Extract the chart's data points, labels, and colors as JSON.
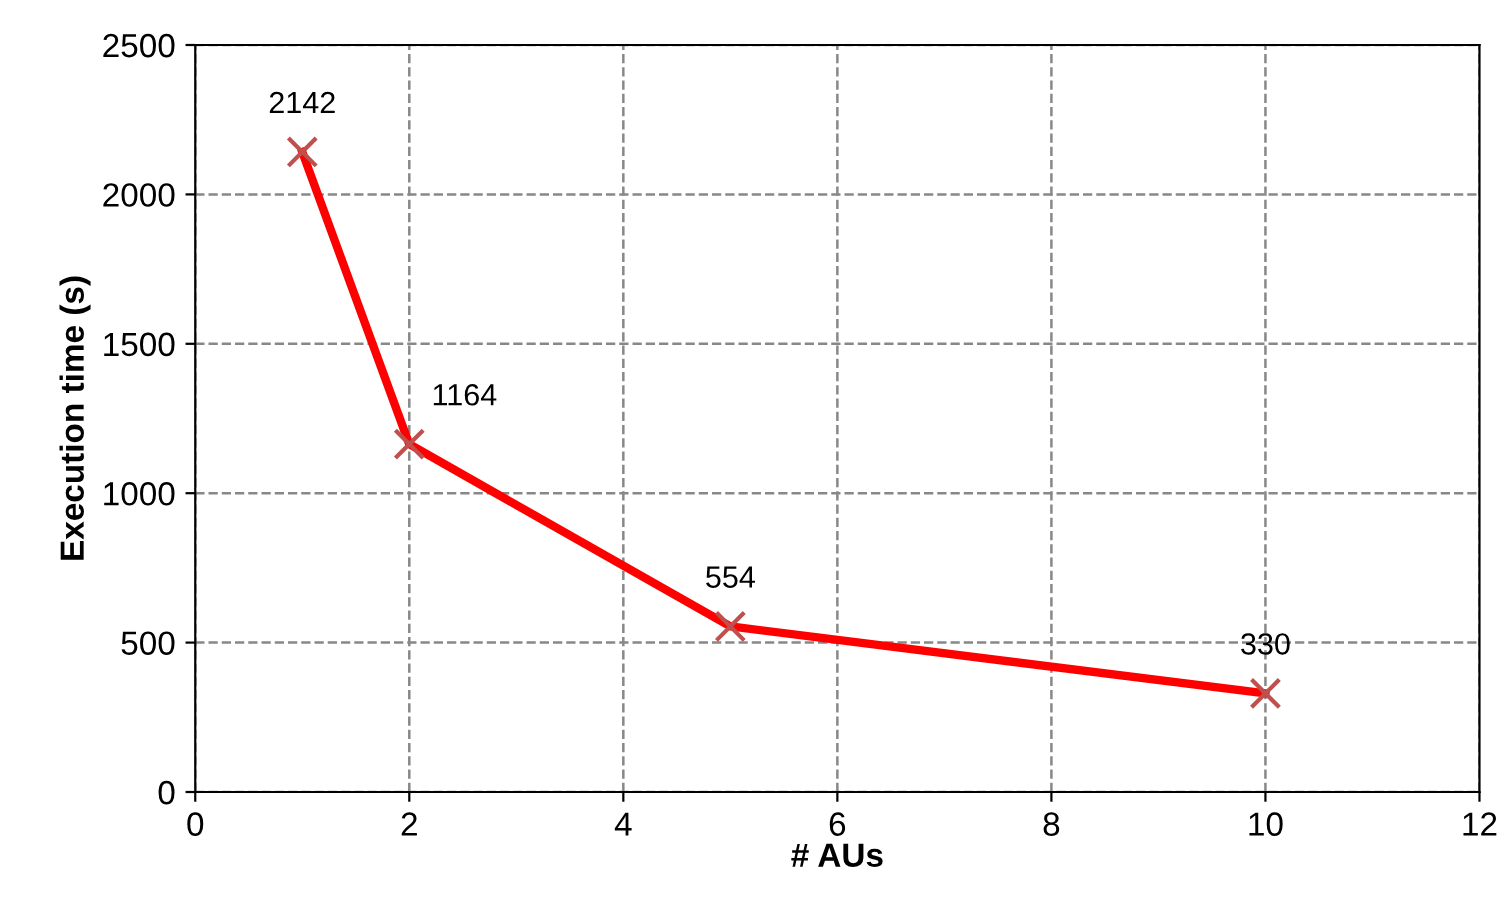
{
  "chart_data": {
    "type": "line",
    "xlabel": "# AUs",
    "ylabel": "Execution time (s)",
    "x": [
      1,
      2,
      5,
      10
    ],
    "series": [
      {
        "color": "#ff0000",
        "values": [
          2142,
          1164,
          554,
          330
        ]
      }
    ],
    "xlim": [
      0,
      12
    ],
    "xticks": [
      0,
      2,
      4,
      6,
      8,
      10,
      12
    ],
    "ylim": [
      0,
      2500
    ],
    "yticks": [
      0,
      500,
      1000,
      1500,
      2000,
      2500
    ],
    "grid": true,
    "marker": "cross",
    "line_style": "solid",
    "data_labels": true
  }
}
